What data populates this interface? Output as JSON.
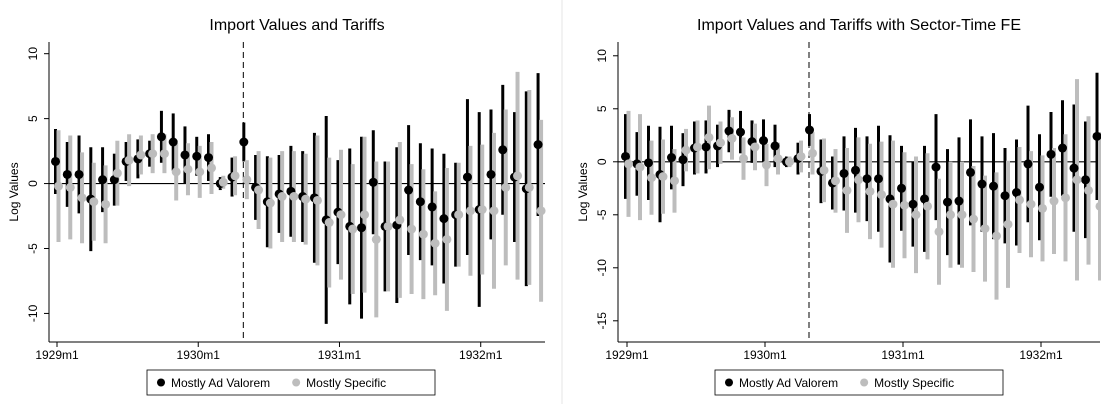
{
  "chart_data": [
    {
      "type": "errorbar",
      "title": "Import Values and Tariffs",
      "ylabel": "Log Values",
      "categories": [
        "1929m1",
        null,
        null,
        null,
        null,
        null,
        null,
        null,
        null,
        null,
        null,
        null,
        "1930m1",
        null,
        null,
        null,
        null,
        null,
        null,
        null,
        null,
        null,
        null,
        null,
        "1931m1",
        null,
        null,
        null,
        null,
        null,
        null,
        null,
        null,
        null,
        null,
        null,
        "1932m1",
        null,
        null,
        null,
        null,
        null
      ],
      "series": [
        {
          "name": "Mostly Ad Valorem",
          "color": "#000000",
          "values": [
            1.7,
            0.7,
            0.7,
            -1.2,
            0.3,
            0.3,
            1.7,
            1.9,
            2.3,
            3.6,
            3.2,
            2.2,
            2.1,
            2,
            0,
            0.5,
            3.2,
            -0.3,
            -1.4,
            -0.8,
            -0.6,
            -1,
            -1.1,
            -2.8,
            -2.2,
            -3.3,
            -3.4,
            0.1,
            -3.3,
            -3.2,
            -0.5,
            -1.4,
            -1.8,
            -2.7,
            -2.4,
            0.5,
            -2,
            0.7,
            2.6,
            0.5,
            -0.4,
            3
          ],
          "errors": [
            2.5,
            2.5,
            3,
            4,
            2.5,
            2,
            1.5,
            1.5,
            1,
            2,
            2.2,
            2.2,
            1.5,
            1.8,
            0.5,
            1.5,
            1.5,
            2.5,
            3.5,
            3,
            3.5,
            3.5,
            5,
            8,
            4,
            6,
            7,
            4,
            5,
            6,
            5,
            4.5,
            4.5,
            5,
            4,
            6,
            7.5,
            5,
            5,
            5,
            7.5,
            5.5
          ]
        },
        {
          "name": "Mostly Specific",
          "color": "#bdbdbd",
          "values": [
            -0.2,
            -0.3,
            -1.1,
            -1.4,
            -1.6,
            0.8,
            1.8,
            2.2,
            2.3,
            2.3,
            0.9,
            1.1,
            0.9,
            1.2,
            0.1,
            0.6,
            0.3,
            -0.5,
            -1.5,
            -1,
            -1,
            -1.2,
            -1.3,
            -3,
            -2.4,
            -3.5,
            -2.4,
            -4.3,
            -3.3,
            -2.8,
            -3.5,
            -3.9,
            -4.6,
            -4.3,
            -2.4,
            -2.1,
            -2,
            -2.1,
            -0.3,
            0.6,
            -0.3,
            -2.1
          ],
          "errors": [
            4.3,
            4,
            3.5,
            3,
            3,
            2.5,
            2,
            1.5,
            1.5,
            1.5,
            2.2,
            2,
            2,
            2,
            0.5,
            1.5,
            1.5,
            3,
            3.5,
            3.5,
            3.5,
            3.5,
            5,
            5,
            5,
            5,
            6,
            6,
            5,
            6,
            5,
            5,
            4,
            5.5,
            4,
            5,
            5,
            6,
            6,
            8,
            7.5,
            7
          ]
        }
      ],
      "ylim": [
        -12.2,
        10.9
      ],
      "yticks": [
        -10,
        -5,
        0,
        5,
        10
      ],
      "hline": 0,
      "vline_category": 16,
      "legend": "bottom"
    },
    {
      "type": "errorbar",
      "title": "Import Values and Tariffs with Sector-Time FE",
      "ylabel": "Log Values",
      "categories": [
        "1929m1",
        null,
        null,
        null,
        null,
        null,
        null,
        null,
        null,
        null,
        null,
        null,
        "1930m1",
        null,
        null,
        null,
        null,
        null,
        null,
        null,
        null,
        null,
        null,
        null,
        "1931m1",
        null,
        null,
        null,
        null,
        null,
        null,
        null,
        null,
        null,
        null,
        null,
        "1932m1",
        null,
        null,
        null,
        null,
        null
      ],
      "series": [
        {
          "name": "Mostly Ad Valorem",
          "color": "#000000",
          "values": [
            0.5,
            -0.2,
            -0.1,
            -1.2,
            0.4,
            0.2,
            1.3,
            1.4,
            1.5,
            2.9,
            2.8,
            1.9,
            2,
            1.5,
            0,
            0.3,
            3,
            -0.9,
            -2,
            -1.1,
            -0.8,
            -1.6,
            -1.6,
            -3.5,
            -2.5,
            -4,
            -3.5,
            -0.5,
            -3.8,
            -3.7,
            -1,
            -2.1,
            -2.3,
            -3.2,
            -2.9,
            -0.2,
            -2.4,
            0.7,
            1.3,
            -0.6,
            -1.7,
            2.4
          ],
          "errors": [
            4,
            3,
            3.5,
            4.5,
            3,
            2.5,
            2.5,
            2.5,
            2,
            2,
            2,
            2,
            2,
            2,
            0.5,
            1.5,
            1.5,
            3,
            2.5,
            3.5,
            4,
            4,
            5,
            6,
            4,
            4,
            5,
            5,
            5,
            6,
            5,
            4.5,
            5,
            4.5,
            5,
            5.5,
            5,
            4,
            4.5,
            6,
            5.5,
            6
          ]
        },
        {
          "name": "Mostly Specific",
          "color": "#bdbdbd",
          "values": [
            -0.2,
            -0.5,
            -1.5,
            -1.4,
            -1.8,
            1.1,
            1.4,
            2.3,
            1.8,
            2.2,
            0.3,
            1.4,
            -0.3,
            0.3,
            0,
            0.5,
            0.8,
            -0.8,
            -1.8,
            -2.7,
            -1.7,
            -2.8,
            -3.1,
            -4,
            -4.1,
            -5,
            -4.2,
            -6.6,
            -5,
            -5,
            -5.4,
            -6.3,
            -7,
            -5.9,
            -3.6,
            -4,
            -4.4,
            -3.7,
            -3.4,
            -1.7,
            -2.7,
            -4.2
          ],
          "errors": [
            5,
            5,
            3.5,
            3.5,
            3,
            2,
            2.5,
            3,
            2,
            2,
            2,
            2.2,
            2,
            1.5,
            0.5,
            1.5,
            2,
            3,
            3,
            4,
            4,
            4.5,
            5,
            6,
            5,
            5.5,
            5,
            5,
            5,
            5,
            5,
            5,
            6,
            6,
            5,
            5,
            5,
            5,
            6,
            9.5,
            7,
            7
          ]
        }
      ],
      "ylim": [
        -17,
        11.3
      ],
      "yticks": [
        -15,
        -10,
        -5,
        0,
        5,
        10
      ],
      "hline": 0,
      "vline_category": 16,
      "legend": "bottom"
    }
  ]
}
